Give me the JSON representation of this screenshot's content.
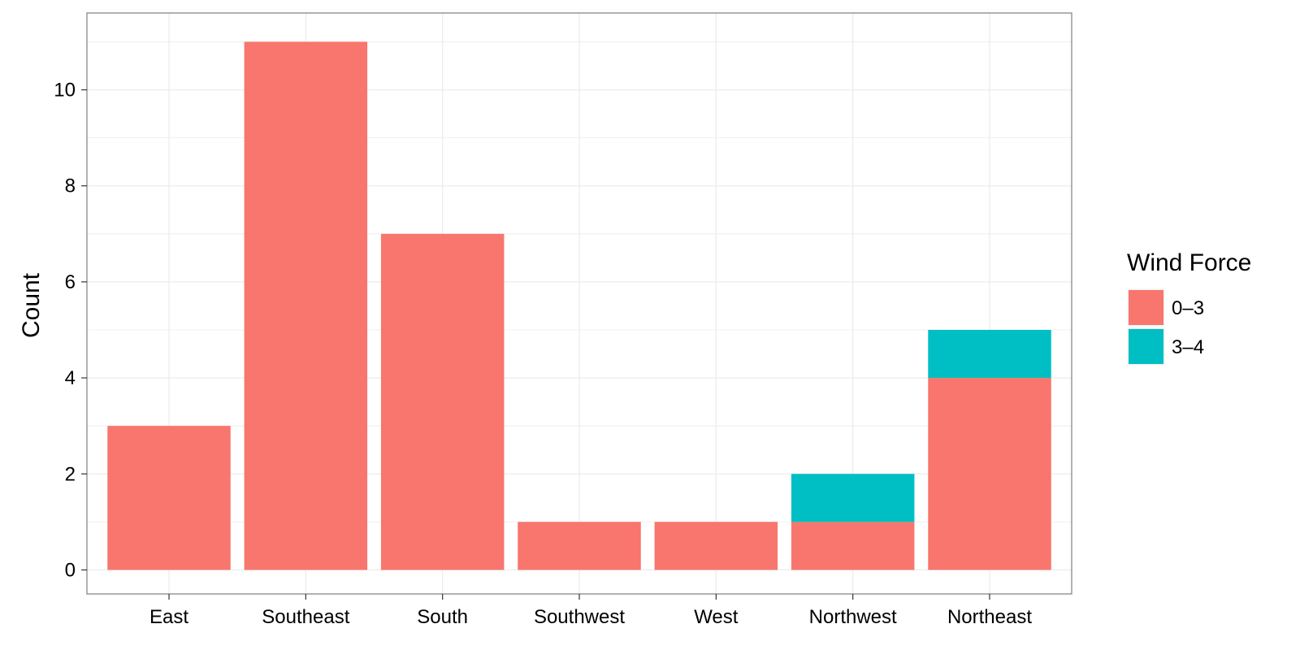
{
  "chart_data": {
    "type": "bar",
    "stacked": true,
    "categories": [
      "East",
      "Southeast",
      "South",
      "Southwest",
      "West",
      "Northwest",
      "Northeast"
    ],
    "series": [
      {
        "name": "0–3",
        "values": [
          3,
          11,
          7,
          1,
          1,
          1,
          4
        ],
        "color": "#F8766D"
      },
      {
        "name": "3–4",
        "values": [
          0,
          0,
          0,
          0,
          0,
          1,
          1
        ],
        "color": "#00BFC4"
      }
    ],
    "xlabel": "",
    "ylabel": "Count",
    "ylim": [
      -0.5,
      11.6
    ],
    "yticks": [
      0,
      2,
      4,
      6,
      8,
      10
    ],
    "grid": true,
    "legend": {
      "title": "Wind Force",
      "placement": "right"
    },
    "colors": {
      "panel_border": "#7F7F7F",
      "grid": "#EBEBEB",
      "tick_label": "#000000"
    }
  }
}
